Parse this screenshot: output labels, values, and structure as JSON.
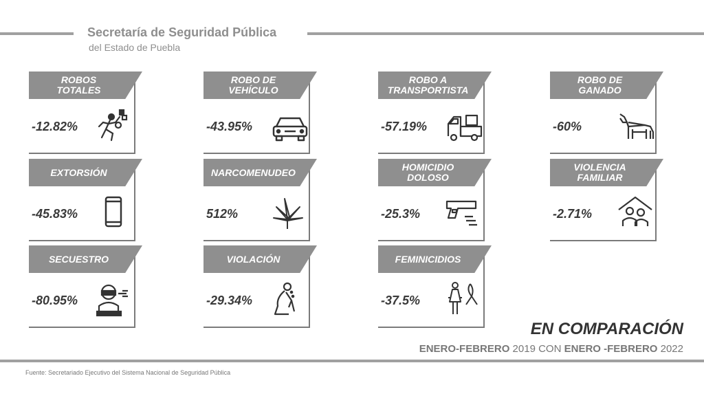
{
  "header": {
    "org_title": "Secretaría de Seguridad Pública",
    "org_subtitle": "del Estado de Puebla"
  },
  "cards": [
    {
      "title": "ROBOS\nTOTALES",
      "value": "-12.82%",
      "icon": "thief-running-icon"
    },
    {
      "title": "ROBO DE\nVEHÍCULO",
      "value": "-43.95%",
      "icon": "car-icon"
    },
    {
      "title": "ROBO A\nTRANSPORTISTA",
      "value": "-57.19%",
      "icon": "truck-icon"
    },
    {
      "title": "ROBO DE\nGANADO",
      "value": "-60%",
      "icon": "cow-icon"
    },
    {
      "title": "EXTORSIÓN",
      "value": "-45.83%",
      "icon": "phone-icon"
    },
    {
      "title": "NARCOMENUDEO",
      "value": "512%",
      "icon": "cannabis-leaf-icon"
    },
    {
      "title": "HOMICIDIO\nDOLOSO",
      "value": "-25.3%",
      "icon": "gun-icon"
    },
    {
      "title": "VIOLENCIA\nFAMILIAR",
      "value": "-2.71%",
      "icon": "family-house-icon"
    },
    {
      "title": "SECUESTRO",
      "value": "-80.95%",
      "icon": "kidnapped-person-icon"
    },
    {
      "title": "VIOLACIÓN",
      "value": "-29.34%",
      "icon": "crouching-victim-icon"
    },
    {
      "title": "FEMINICIDIOS",
      "value": "-37.5%",
      "icon": "woman-ribbon-icon"
    }
  ],
  "comparison": {
    "title": "EN COMPARACIÓN",
    "period1_bold": "ENERO-FEBRERO",
    "year1": " 2019 CON ",
    "period2_bold": "ENERO -FEBRERO",
    "year2": " 2022"
  },
  "source": "Fuente: Secretariado Ejecutivo del  Sistema Nacional de Seguridad Pública"
}
